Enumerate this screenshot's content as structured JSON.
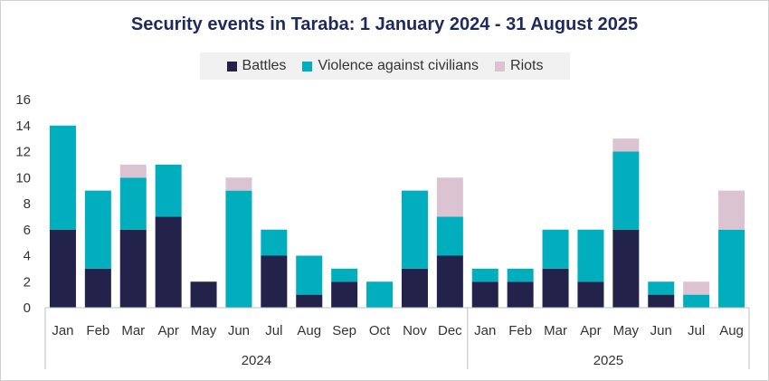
{
  "chart_data": {
    "type": "bar",
    "stacked": true,
    "title": "Security events in Taraba: 1 January 2024 - 31 August 2025",
    "categories": [
      "Jan",
      "Feb",
      "Mar",
      "Apr",
      "May",
      "Jun",
      "Jul",
      "Aug",
      "Sep",
      "Oct",
      "Nov",
      "Dec",
      "Jan",
      "Feb",
      "Mar",
      "Apr",
      "May",
      "Jun",
      "Jul",
      "Aug"
    ],
    "groups": [
      {
        "label": "2024",
        "count": 12
      },
      {
        "label": "2025",
        "count": 8
      }
    ],
    "series": [
      {
        "name": "Battles",
        "color": "#22224a",
        "values": [
          6,
          3,
          6,
          7,
          2,
          0,
          4,
          1,
          2,
          0,
          3,
          4,
          2,
          2,
          3,
          2,
          6,
          1,
          0,
          0
        ]
      },
      {
        "name": "Violence against civilians",
        "color": "#00aebd",
        "values": [
          8,
          6,
          4,
          4,
          0,
          9,
          2,
          3,
          1,
          2,
          6,
          3,
          1,
          1,
          3,
          4,
          6,
          1,
          1,
          6
        ]
      },
      {
        "name": "Riots",
        "color": "#dcc3d2",
        "values": [
          0,
          0,
          1,
          0,
          0,
          1,
          0,
          0,
          0,
          0,
          0,
          3,
          0,
          0,
          0,
          0,
          1,
          0,
          1,
          3
        ]
      }
    ],
    "ylim": [
      0,
      16
    ],
    "yticks": [
      0,
      2,
      4,
      6,
      8,
      10,
      12,
      14,
      16
    ],
    "xlabel": "",
    "ylabel": "",
    "legend_position": "top-center",
    "grid": false
  }
}
